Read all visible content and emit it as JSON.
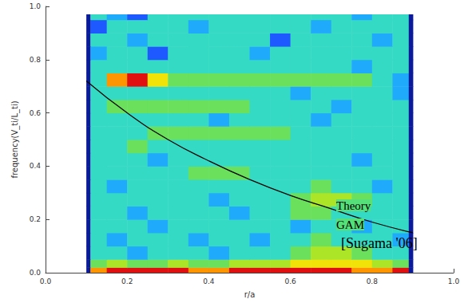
{
  "chart_data": {
    "type": "heatmap",
    "x_label": "r/a",
    "y_label": "frequency(V_ti/L_ti)",
    "xlim": [
      0,
      1
    ],
    "ylim": [
      0,
      1
    ],
    "xticks": [
      {
        "value": 0,
        "label": "0.0"
      },
      0.2,
      0.4,
      0.6,
      0.8,
      {
        "value": 1,
        "label": "1.0"
      }
    ],
    "yticks": [
      {
        "value": 0,
        "label": "0.0"
      },
      0.2,
      0.4,
      0.6,
      0.8,
      {
        "value": 1,
        "label": "1.0"
      }
    ],
    "grid": false,
    "heatmap": {
      "x_edges": [
        0.1,
        0.11,
        0.15,
        0.2,
        0.25,
        0.3,
        0.35,
        0.4,
        0.45,
        0.5,
        0.55,
        0.6,
        0.65,
        0.7,
        0.75,
        0.8,
        0.85,
        0.89,
        0.9
      ],
      "y_edges": [
        0,
        0.02,
        0.05,
        0.1,
        0.15,
        0.2,
        0.25,
        0.3,
        0.35,
        0.4,
        0.45,
        0.5,
        0.55,
        0.6,
        0.65,
        0.7,
        0.75,
        0.8,
        0.85,
        0.9,
        0.95,
        0.97
      ],
      "z": [
        [
          1,
          8,
          9,
          9,
          9,
          9,
          8,
          8,
          9,
          9,
          9,
          9,
          9,
          9,
          8,
          8,
          9,
          1
        ],
        [
          1,
          5,
          6,
          5,
          5,
          6,
          5,
          5,
          6,
          6,
          6,
          7,
          7,
          7,
          7,
          6,
          5,
          1
        ],
        [
          1,
          4,
          4,
          3,
          4,
          4,
          4,
          3,
          4,
          4,
          4,
          5,
          6,
          6,
          5,
          4,
          4,
          1
        ],
        [
          1,
          4,
          3,
          4,
          4,
          4,
          3,
          4,
          4,
          3,
          4,
          4,
          5,
          4,
          4,
          4,
          3,
          1
        ],
        [
          1,
          4,
          4,
          4,
          3,
          4,
          4,
          4,
          4,
          4,
          4,
          3,
          4,
          4,
          3,
          4,
          4,
          1
        ],
        [
          1,
          4,
          4,
          3,
          4,
          4,
          4,
          4,
          3,
          4,
          4,
          5,
          5,
          4,
          4,
          4,
          4,
          1
        ],
        [
          1,
          4,
          4,
          4,
          4,
          4,
          4,
          3,
          4,
          4,
          4,
          5,
          6,
          6,
          5,
          4,
          4,
          1
        ],
        [
          1,
          4,
          3,
          4,
          4,
          4,
          4,
          4,
          4,
          4,
          4,
          4,
          5,
          4,
          4,
          3,
          4,
          1
        ],
        [
          1,
          4,
          4,
          4,
          4,
          4,
          5,
          5,
          5,
          4,
          4,
          4,
          4,
          4,
          4,
          4,
          4,
          1
        ],
        [
          1,
          4,
          4,
          4,
          3,
          4,
          4,
          4,
          4,
          4,
          4,
          4,
          4,
          4,
          3,
          4,
          4,
          1
        ],
        [
          1,
          4,
          4,
          5,
          4,
          4,
          4,
          4,
          4,
          4,
          4,
          4,
          4,
          4,
          4,
          4,
          4,
          1
        ],
        [
          1,
          4,
          4,
          4,
          5,
          5,
          5,
          5,
          5,
          5,
          5,
          4,
          4,
          4,
          4,
          4,
          4,
          1
        ],
        [
          1,
          4,
          4,
          4,
          4,
          4,
          4,
          3,
          4,
          4,
          4,
          4,
          3,
          4,
          4,
          4,
          4,
          1
        ],
        [
          1,
          4,
          5,
          5,
          5,
          5,
          5,
          5,
          5,
          4,
          4,
          4,
          4,
          3,
          4,
          4,
          4,
          1
        ],
        [
          1,
          4,
          4,
          4,
          4,
          4,
          4,
          4,
          4,
          4,
          4,
          3,
          4,
          4,
          4,
          4,
          3,
          1
        ],
        [
          1,
          4,
          8,
          9,
          7,
          5,
          5,
          5,
          5,
          5,
          5,
          5,
          5,
          5,
          5,
          4,
          3,
          1
        ],
        [
          1,
          4,
          4,
          4,
          4,
          4,
          4,
          4,
          4,
          4,
          4,
          4,
          4,
          4,
          3,
          4,
          4,
          1
        ],
        [
          1,
          3,
          4,
          4,
          2,
          4,
          4,
          4,
          4,
          3,
          4,
          4,
          4,
          4,
          4,
          4,
          4,
          1
        ],
        [
          1,
          4,
          4,
          3,
          4,
          4,
          4,
          4,
          4,
          4,
          2,
          4,
          4,
          4,
          4,
          3,
          4,
          1
        ],
        [
          1,
          2,
          4,
          4,
          4,
          4,
          3,
          4,
          4,
          4,
          4,
          4,
          3,
          4,
          4,
          4,
          4,
          1
        ],
        [
          1,
          4,
          3,
          2,
          4,
          4,
          4,
          4,
          4,
          4,
          4,
          4,
          4,
          4,
          3,
          4,
          4,
          1
        ]
      ]
    },
    "curve": {
      "x": [
        0.1,
        0.2,
        0.3,
        0.4,
        0.5,
        0.6,
        0.7,
        0.8,
        0.9
      ],
      "y": [
        0.72,
        0.6,
        0.5,
        0.42,
        0.35,
        0.29,
        0.24,
        0.19,
        0.15
      ],
      "color": "#000000"
    },
    "annotations": [
      "Theory",
      "GAM",
      "[Sugama '06]"
    ]
  }
}
